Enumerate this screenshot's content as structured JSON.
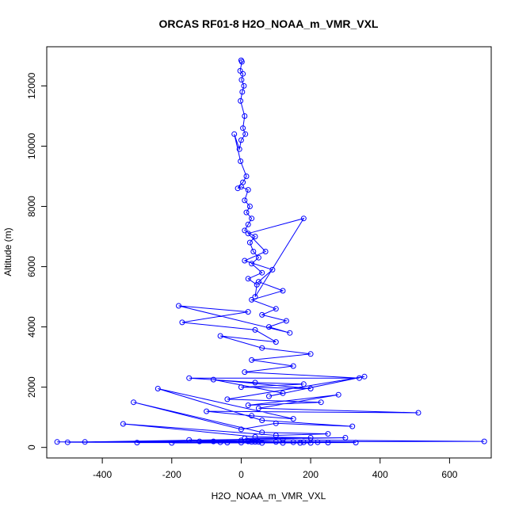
{
  "chart_data": {
    "type": "scatter",
    "title": "ORCAS RF01-8 H2O_NOAA_m_VMR_VXL",
    "xlabel": "H2O_NOAA_m_VMR_VXL",
    "ylabel": "Altitude (m)",
    "xlim": [
      -560,
      720
    ],
    "ylim": [
      -350,
      13300
    ],
    "xticks": [
      -400,
      -200,
      0,
      200,
      400,
      600
    ],
    "yticks": [
      0,
      2000,
      4000,
      6000,
      8000,
      10000,
      12000
    ],
    "grid": false,
    "series": [
      {
        "color": "#0000ff",
        "marker": "open-circle",
        "connected": true,
        "x": [
          0,
          2,
          -3,
          5,
          1,
          8,
          3,
          -2,
          10,
          5,
          12,
          0,
          -5,
          -20,
          -2,
          15,
          5,
          -10,
          0,
          20,
          10,
          25,
          15,
          30,
          20,
          10,
          40,
          25,
          35,
          50,
          30,
          60,
          20,
          45,
          40,
          180,
          20,
          70,
          10,
          90,
          50,
          120,
          30,
          100,
          60,
          130,
          80,
          140,
          -180,
          20,
          -170,
          40,
          100,
          -60,
          60,
          200,
          30,
          150,
          10,
          340,
          -150,
          40,
          180,
          0,
          200,
          -80,
          120,
          80,
          355,
          -40,
          230,
          20,
          280,
          50,
          510,
          -100,
          30,
          150,
          -240,
          60,
          320,
          100,
          0,
          -310,
          60,
          250,
          100,
          -340,
          40,
          200,
          10,
          300,
          -450,
          120,
          700,
          -530,
          250,
          0,
          180,
          -500,
          40,
          330,
          -60,
          170,
          -200,
          220,
          -300,
          20,
          120,
          -150,
          50,
          -80,
          200,
          0,
          100,
          -120,
          60,
          150,
          -40,
          30
        ],
        "y": [
          12850,
          12800,
          12500,
          12400,
          12200,
          12000,
          11800,
          11500,
          11000,
          10600,
          10400,
          10200,
          9900,
          10400,
          9500,
          9000,
          8800,
          8600,
          8650,
          8550,
          8200,
          8000,
          7800,
          7600,
          7400,
          7200,
          7000,
          6800,
          6500,
          6300,
          6100,
          5800,
          5600,
          5400,
          5000,
          7600,
          7100,
          6500,
          6200,
          5900,
          5500,
          5200,
          4900,
          4600,
          4400,
          4200,
          4000,
          3800,
          4700,
          4500,
          4150,
          3900,
          3500,
          3700,
          3300,
          3100,
          2900,
          2700,
          2500,
          2300,
          2300,
          2150,
          2100,
          2000,
          1950,
          2250,
          1800,
          1700,
          2350,
          1600,
          1500,
          1400,
          1750,
          1300,
          1150,
          1200,
          1050,
          950,
          1950,
          900,
          700,
          800,
          600,
          1500,
          500,
          450,
          400,
          780,
          350,
          320,
          300,
          320,
          180,
          250,
          200,
          180,
          160,
          160,
          170,
          170,
          180,
          160,
          170,
          150,
          150,
          170,
          160,
          200,
          150,
          250,
          180,
          200,
          150,
          230,
          180,
          200,
          150,
          170,
          160,
          180
        ]
      }
    ]
  }
}
